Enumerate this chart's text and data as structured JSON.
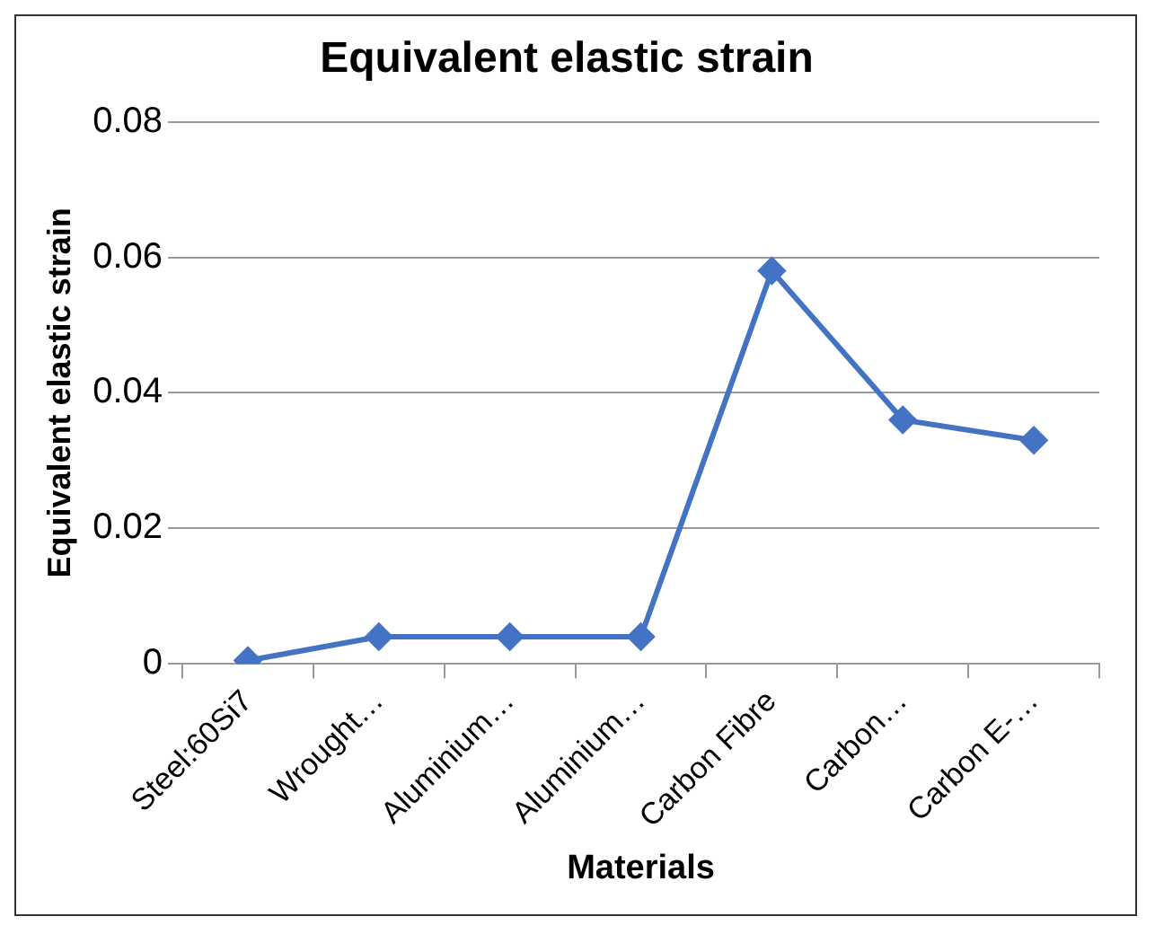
{
  "chart_data": {
    "type": "line",
    "title": "Equivalent elastic strain",
    "xlabel": "Materials",
    "ylabel": "Equivalent elastic strain",
    "categories": [
      "Steel:60Si7",
      "Wrought…",
      "Aluminium…",
      "Aluminium…",
      "Carbon Fibre",
      "Carbon…",
      "Carbon E-…"
    ],
    "series": [
      {
        "color": "#4472c4",
        "values": [
          0.0005,
          0.004,
          0.004,
          0.004,
          0.058,
          0.036,
          0.033
        ]
      }
    ],
    "ylim": [
      0,
      0.08
    ],
    "yticks": [
      0,
      0.02,
      0.04,
      0.06,
      0.08
    ],
    "grid": "y",
    "legend": false,
    "marker": "diamond",
    "line_style": "solid"
  }
}
